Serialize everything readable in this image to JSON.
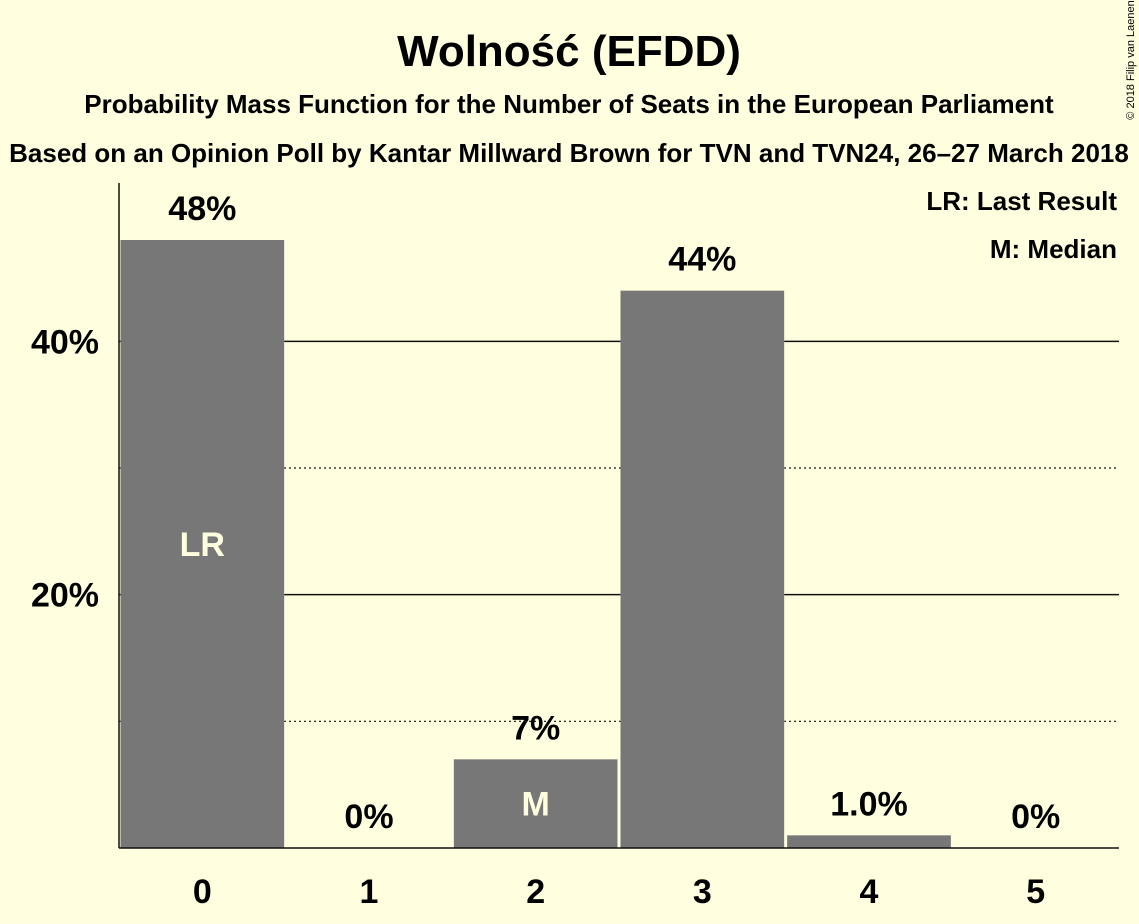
{
  "chart_data": {
    "type": "bar",
    "title": "Wolność (EFDD)",
    "subtitle": "Probability Mass Function for the Number of Seats in the European Parliament",
    "subtitle2": "Based on an Opinion Poll by Kantar Millward Brown for TVN and TVN24, 26–27 March 2018",
    "copyright": "© 2018 Filip van Laenen",
    "categories": [
      "0",
      "1",
      "2",
      "3",
      "4",
      "5"
    ],
    "values": [
      48,
      0,
      7,
      44,
      1.0,
      0
    ],
    "value_labels": [
      "48%",
      "0%",
      "7%",
      "44%",
      "1.0%",
      "0%"
    ],
    "inner_labels": [
      "LR",
      "",
      "M",
      "",
      "",
      ""
    ],
    "ylim": [
      0,
      52.5
    ],
    "yticks": [
      20,
      40
    ],
    "ytick_labels": [
      "20%",
      "40%"
    ],
    "minor_yticks": [
      10,
      30
    ],
    "legend": [
      "LR: Last Result",
      "M: Median"
    ],
    "legend_position": "top-right",
    "bar_color": "#777777",
    "background_color": "#ffffe0"
  }
}
